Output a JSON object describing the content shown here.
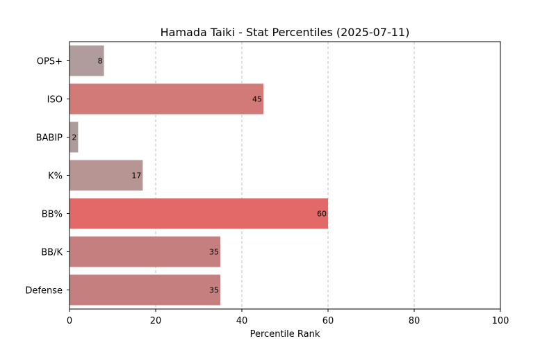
{
  "chart_data": {
    "type": "bar",
    "orientation": "horizontal",
    "title": "Hamada Taiki - Stat Percentiles (2025-07-11)",
    "xlabel": "Percentile Rank",
    "ylabel": "",
    "xlim": [
      0,
      100
    ],
    "xticks": [
      0,
      20,
      40,
      60,
      80,
      100
    ],
    "grid": "x-dashed",
    "categories": [
      "OPS+",
      "ISO",
      "BABIP",
      "K%",
      "BB%",
      "BB/K",
      "Defense"
    ],
    "values": [
      8,
      45,
      2,
      17,
      60,
      35,
      35
    ],
    "colors": [
      "#b09c9c",
      "#d27a77",
      "#ad9c9b",
      "#b69593",
      "#e26967",
      "#c57f7e",
      "#c57f7e"
    ]
  }
}
